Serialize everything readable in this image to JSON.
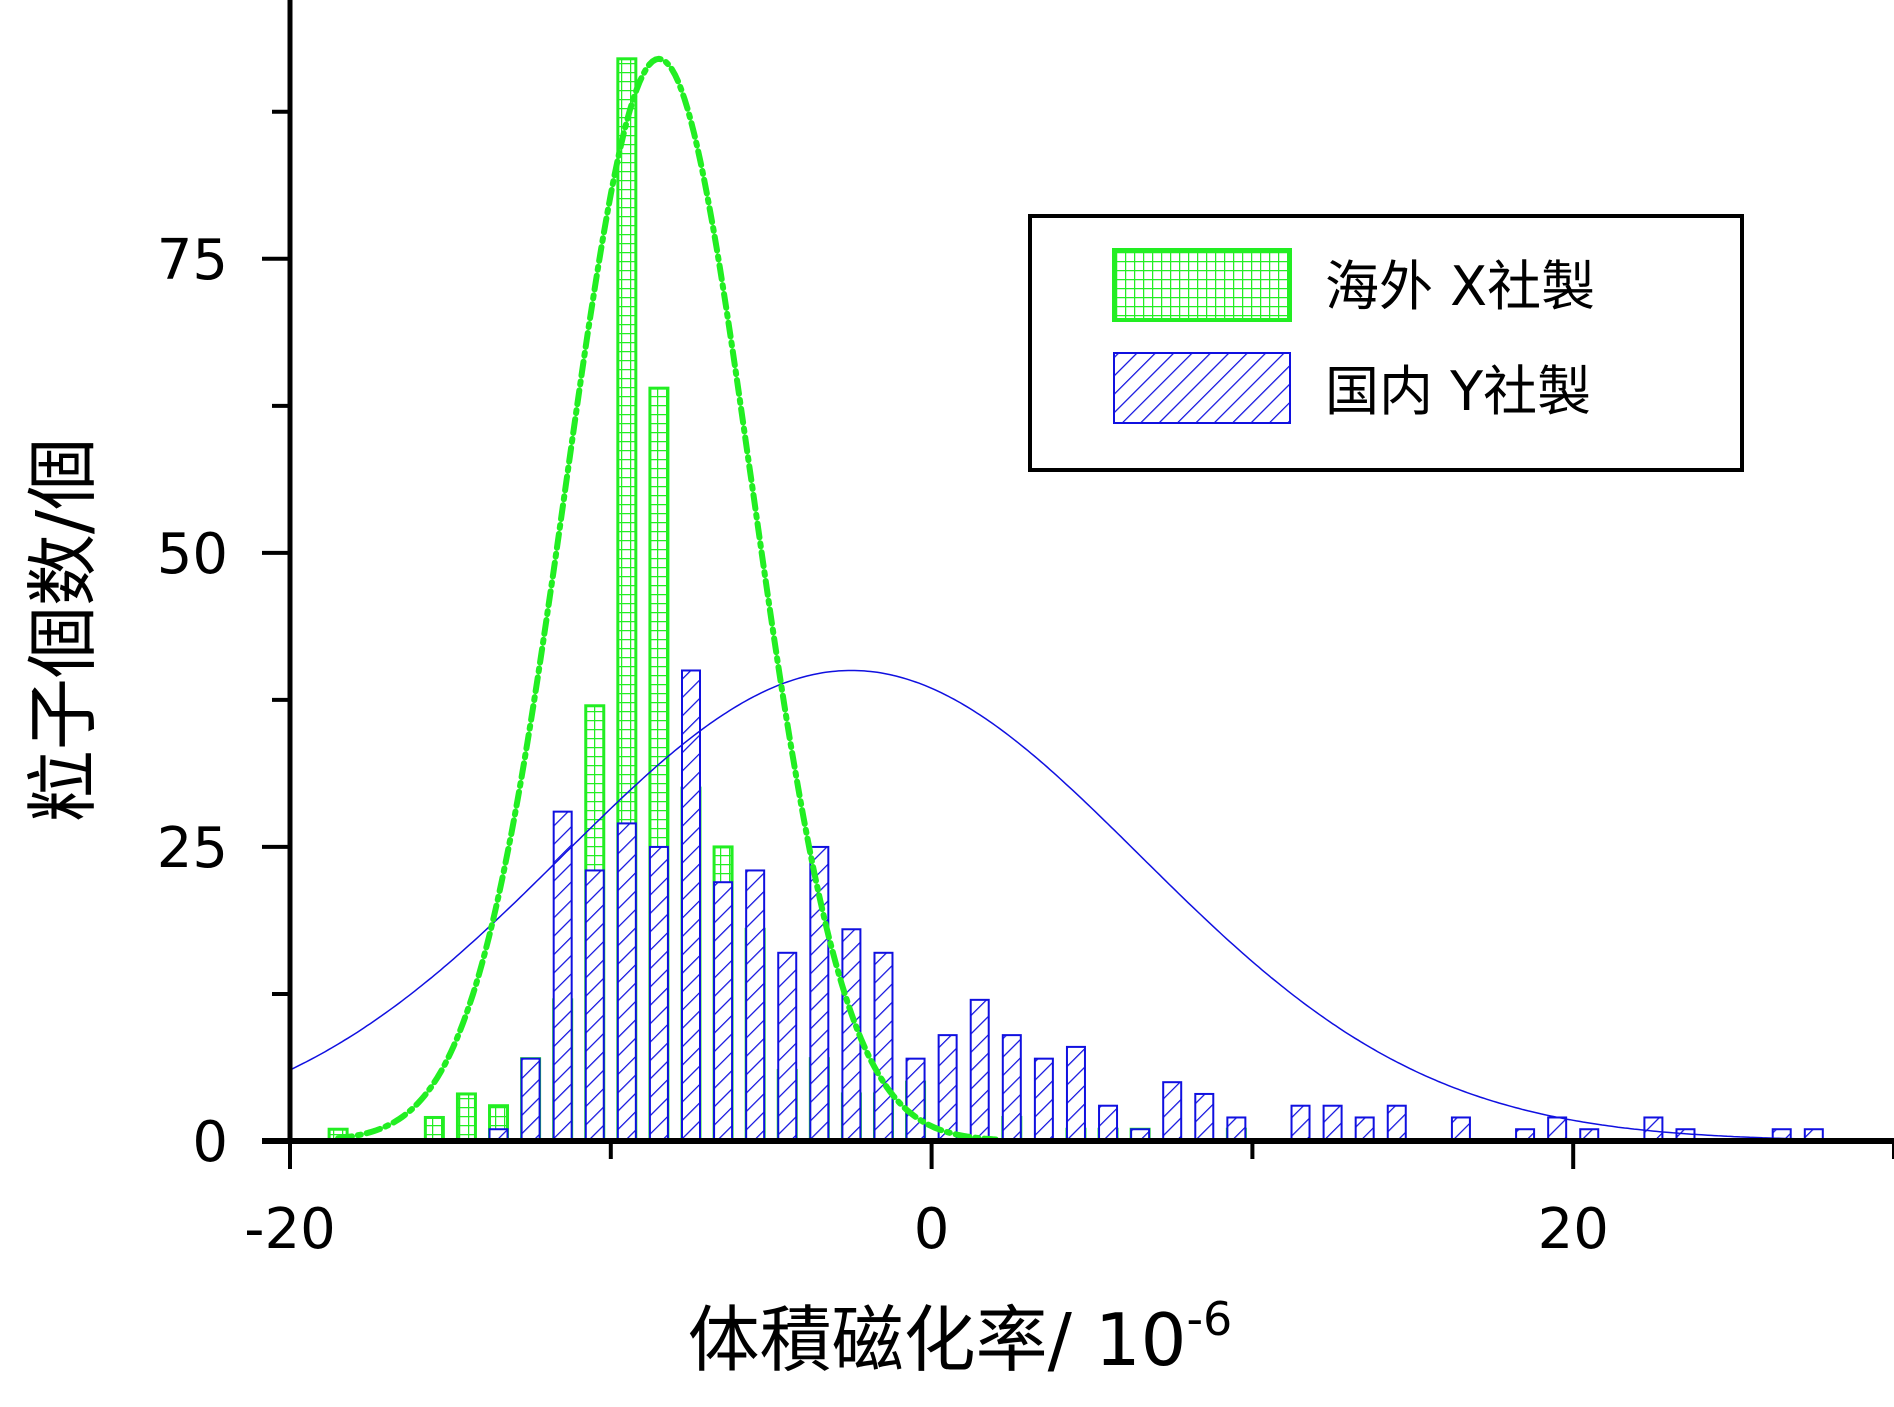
{
  "chart_data": {
    "type": "bar",
    "xlabel": "体積磁化率/ 10",
    "xlabel_exponent": "-6",
    "ylabel": "粒子個数/個",
    "xlim": [
      -20,
      30
    ],
    "ylim": [
      0,
      97
    ],
    "x_ticks": [
      -20,
      0,
      20
    ],
    "x_tick_labels": [
      "-20",
      "0",
      "20"
    ],
    "y_ticks": [
      0,
      25,
      50,
      75
    ],
    "y_tick_labels": [
      "0",
      "25",
      "50",
      "75"
    ],
    "grid": false,
    "legend_position": "top-right",
    "series": [
      {
        "name": "海外 X社製",
        "color": "#22ee22",
        "pattern": "grid",
        "bars": [
          {
            "x": -18.5,
            "y": 1
          },
          {
            "x": -15.5,
            "y": 2
          },
          {
            "x": -14.5,
            "y": 4
          },
          {
            "x": -13.5,
            "y": 3
          },
          {
            "x": -12.5,
            "y": 7
          },
          {
            "x": -11.5,
            "y": 12
          },
          {
            "x": -10.5,
            "y": 37
          },
          {
            "x": -9.5,
            "y": 92
          },
          {
            "x": -8.5,
            "y": 64
          },
          {
            "x": -7.5,
            "y": 30
          },
          {
            "x": -6.5,
            "y": 25
          },
          {
            "x": -5.5,
            "y": 18
          },
          {
            "x": -4.5,
            "y": 6
          },
          {
            "x": -3.5,
            "y": 7
          },
          {
            "x": -2.5,
            "y": 4
          },
          {
            "x": -1.5,
            "y": 4
          },
          {
            "x": -0.5,
            "y": 5
          },
          {
            "x": 2.5,
            "y": 2
          },
          {
            "x": 4.5,
            "y": 1
          },
          {
            "x": 5.5,
            "y": 1
          },
          {
            "x": 6.5,
            "y": 1
          },
          {
            "x": 9.5,
            "y": 1
          }
        ],
        "fit": {
          "type": "gaussian",
          "amplitude": 92,
          "mean": -8.5,
          "sigma": 2.9
        }
      },
      {
        "name": "国内 Y社製",
        "color": "#1010e0",
        "pattern": "diagonal",
        "bars": [
          {
            "x": -13.5,
            "y": 1
          },
          {
            "x": -12.5,
            "y": 7
          },
          {
            "x": -11.5,
            "y": 28
          },
          {
            "x": -10.5,
            "y": 23
          },
          {
            "x": -9.5,
            "y": 27
          },
          {
            "x": -8.5,
            "y": 25
          },
          {
            "x": -7.5,
            "y": 40
          },
          {
            "x": -6.5,
            "y": 22
          },
          {
            "x": -5.5,
            "y": 23
          },
          {
            "x": -4.5,
            "y": 16
          },
          {
            "x": -3.5,
            "y": 25
          },
          {
            "x": -2.5,
            "y": 18
          },
          {
            "x": -1.5,
            "y": 16
          },
          {
            "x": -0.5,
            "y": 7
          },
          {
            "x": 0.5,
            "y": 9
          },
          {
            "x": 1.5,
            "y": 12
          },
          {
            "x": 2.5,
            "y": 9
          },
          {
            "x": 3.5,
            "y": 7
          },
          {
            "x": 4.5,
            "y": 8
          },
          {
            "x": 5.5,
            "y": 3
          },
          {
            "x": 6.5,
            "y": 1
          },
          {
            "x": 7.5,
            "y": 5
          },
          {
            "x": 8.5,
            "y": 4
          },
          {
            "x": 9.5,
            "y": 2
          },
          {
            "x": 11.5,
            "y": 3
          },
          {
            "x": 12.5,
            "y": 3
          },
          {
            "x": 13.5,
            "y": 2
          },
          {
            "x": 14.5,
            "y": 3
          },
          {
            "x": 16.5,
            "y": 2
          },
          {
            "x": 18.5,
            "y": 1
          },
          {
            "x": 19.5,
            "y": 2
          },
          {
            "x": 20.5,
            "y": 1
          },
          {
            "x": 22.5,
            "y": 2
          },
          {
            "x": 23.5,
            "y": 1
          },
          {
            "x": 26.5,
            "y": 1
          },
          {
            "x": 27.5,
            "y": 1
          }
        ],
        "fit": {
          "type": "gaussian",
          "amplitude": 40,
          "mean": -2.5,
          "sigma": 9.0
        }
      }
    ]
  }
}
